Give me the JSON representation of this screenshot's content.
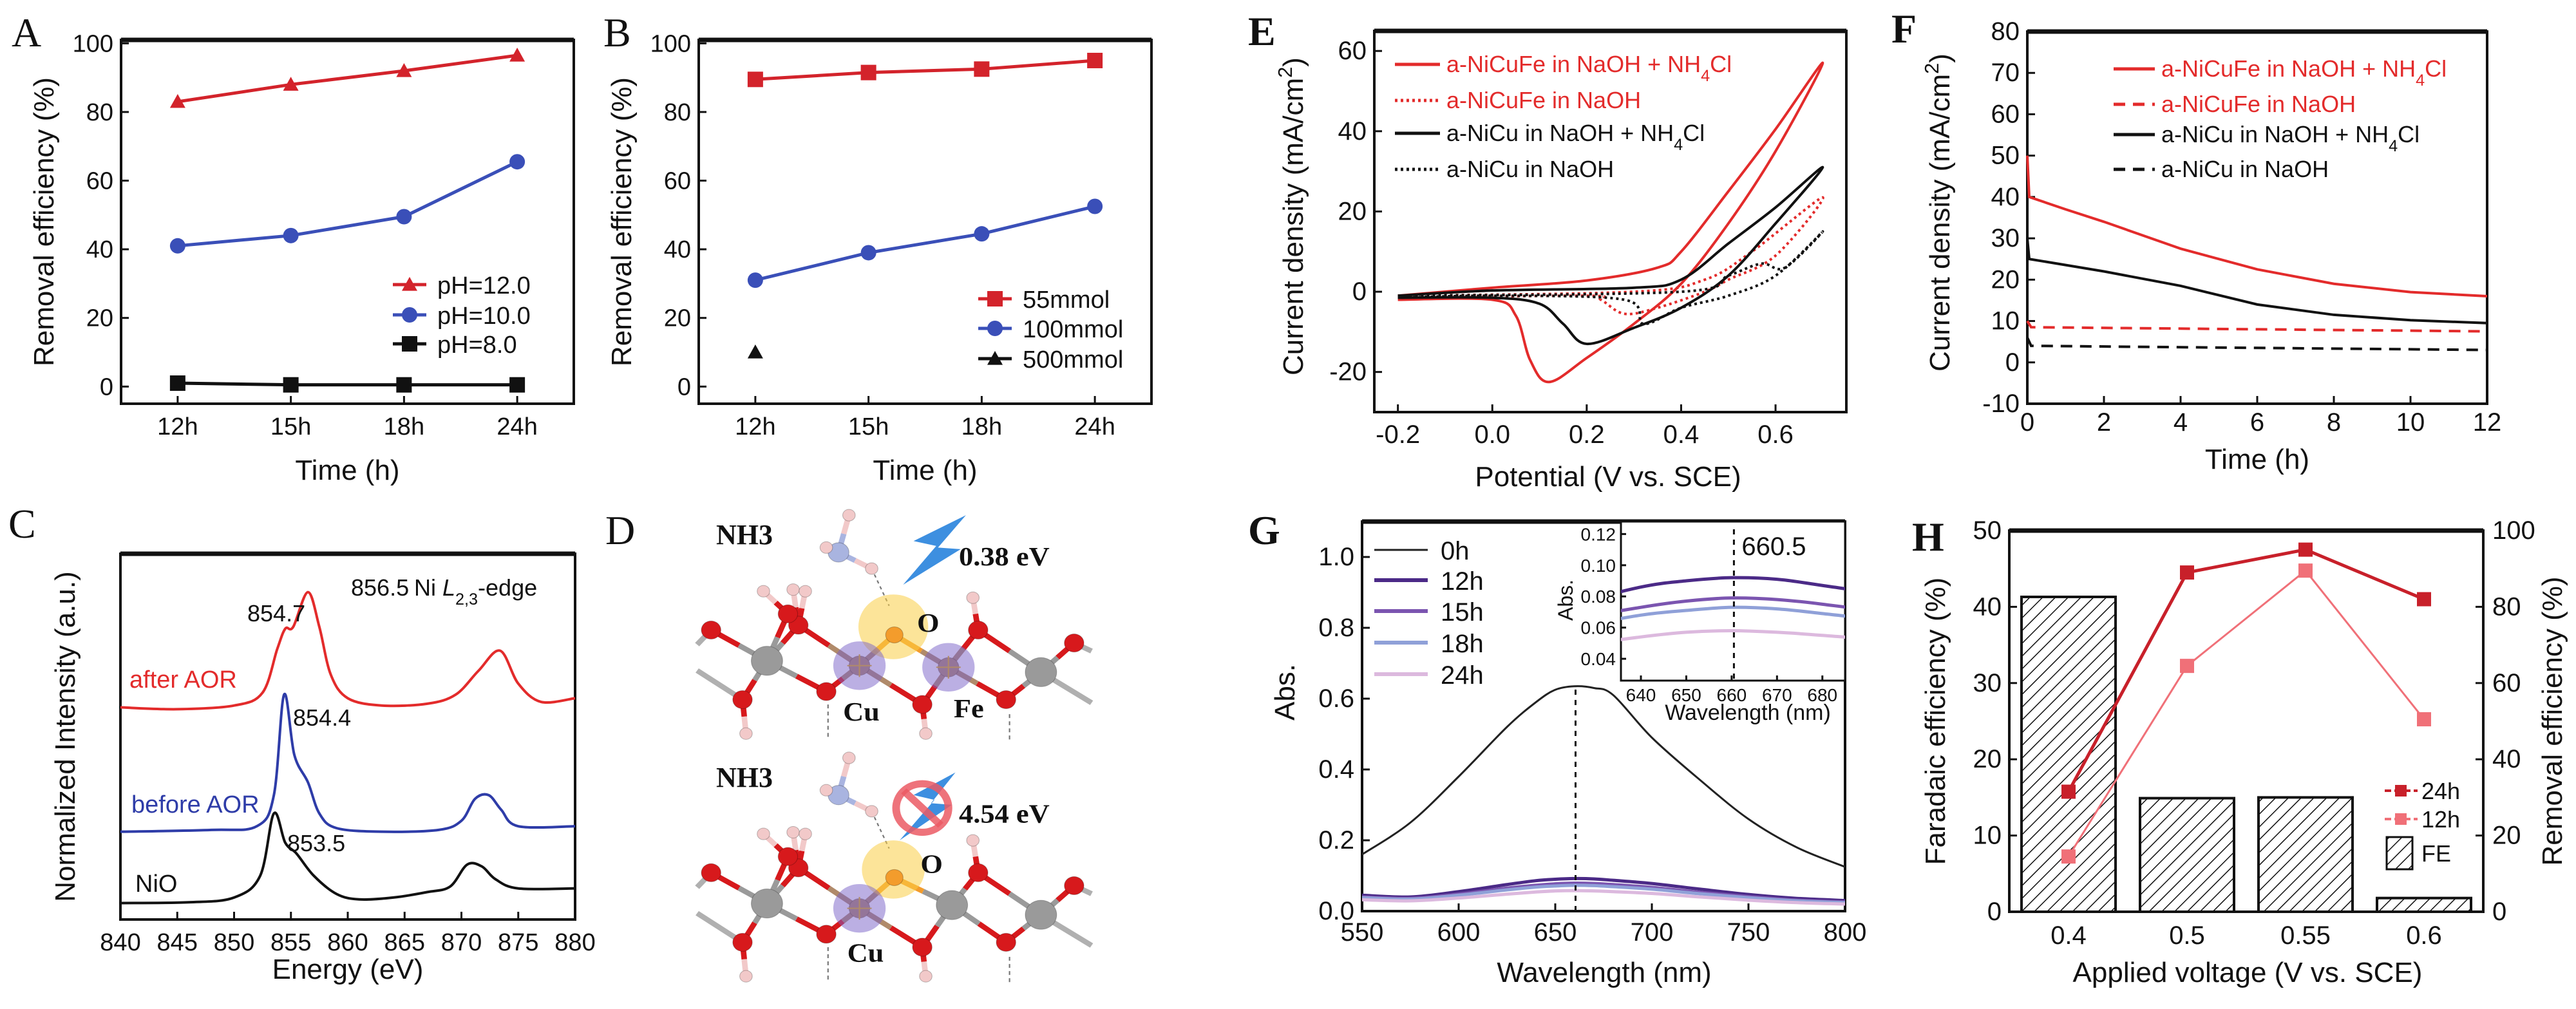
{
  "panel_letters": [
    "A",
    "B",
    "C",
    "D",
    "E",
    "F",
    "G",
    "H"
  ],
  "colors": {
    "red": "#e32b2b",
    "dark_red": "#c8202a",
    "pink": "#f07078",
    "blue": "#3a4fb8",
    "black": "#111111"
  },
  "panel_d": {
    "molecule_top": "NH3",
    "molecule_bottom": "NH3",
    "energy_top": "0.38 eV",
    "energy_bottom": "4.54 eV",
    "oxygen_top": "O",
    "oxygen_bottom": "O",
    "copper_top": "Cu",
    "iron_top": "Fe",
    "copper_bottom": "Cu",
    "icons": [
      "lightning-icon",
      "prohibited-icon"
    ]
  },
  "chart_data": [
    {
      "panel": "A",
      "type": "line",
      "xlabel": "Time (h)",
      "ylabel": "Removal efficiency (%)",
      "categories": [
        "12h",
        "15h",
        "18h",
        "24h"
      ],
      "y_ticks": [
        "0",
        "20",
        "40",
        "60",
        "80",
        "100"
      ],
      "ylim": [
        -5,
        101
      ],
      "grid": false,
      "legend": "bottom-right",
      "series": [
        {
          "name": "pH=12.0",
          "color": "#d3232b",
          "marker": "triangle",
          "values": [
            83,
            88,
            92,
            96.5
          ]
        },
        {
          "name": "pH=10.0",
          "color": "#3a4fb8",
          "marker": "circle",
          "values": [
            41,
            44,
            49.5,
            65.5
          ]
        },
        {
          "name": "pH=8.0",
          "color": "#111111",
          "marker": "square",
          "values": [
            1,
            0.5,
            0.5,
            0.5
          ]
        }
      ]
    },
    {
      "panel": "B",
      "type": "line",
      "xlabel": "Time (h)",
      "ylabel": "Removal efficiency (%)",
      "categories": [
        "12h",
        "15h",
        "18h",
        "24h"
      ],
      "y_ticks": [
        "0",
        "20",
        "40",
        "60",
        "80",
        "100"
      ],
      "ylim": [
        -5,
        101
      ],
      "grid": false,
      "legend": "bottom-right",
      "series": [
        {
          "name": "55mmol",
          "color": "#d3232b",
          "marker": "square",
          "values": [
            89.5,
            91.5,
            92.5,
            95
          ]
        },
        {
          "name": "100mmol",
          "color": "#3a4fb8",
          "marker": "circle",
          "values": [
            31,
            39,
            44.5,
            52.5
          ]
        },
        {
          "name": "500mmol",
          "color": "#111111",
          "marker": "triangle",
          "values": [
            10,
            null,
            null,
            null
          ]
        }
      ]
    },
    {
      "panel": "C",
      "type": "line",
      "xlabel": "Energy (eV)",
      "ylabel": "Normalized Intensity (a.u.)",
      "x_ticks": [
        "840",
        "845",
        "850",
        "855",
        "860",
        "865",
        "870",
        "875",
        "880"
      ],
      "xlim": [
        840,
        880
      ],
      "ylim": [
        0,
        1
      ],
      "grid": false,
      "annotations": [
        "856.5",
        "854.7",
        "Ni L2,3-edge",
        "854.4",
        "853.5"
      ],
      "series": [
        {
          "label": "after AOR",
          "color": "#e32b2b",
          "points": [
            [
              840,
              0.58
            ],
            [
              845,
              0.575
            ],
            [
              850,
              0.585
            ],
            [
              852.5,
              0.62
            ],
            [
              853.8,
              0.74
            ],
            [
              854.5,
              0.795
            ],
            [
              855.2,
              0.8
            ],
            [
              856.5,
              0.895
            ],
            [
              857.5,
              0.8
            ],
            [
              858.5,
              0.67
            ],
            [
              860,
              0.605
            ],
            [
              863,
              0.585
            ],
            [
              867,
              0.59
            ],
            [
              869.5,
              0.615
            ],
            [
              871.5,
              0.68
            ],
            [
              873.4,
              0.735
            ],
            [
              875,
              0.645
            ],
            [
              877,
              0.595
            ],
            [
              880,
              0.605
            ]
          ]
        },
        {
          "label": "before AOR",
          "color": "#2e3ca8",
          "points": [
            [
              840,
              0.24
            ],
            [
              848,
              0.245
            ],
            [
              852,
              0.255
            ],
            [
              853.5,
              0.34
            ],
            [
              854.4,
              0.615
            ],
            [
              855.3,
              0.45
            ],
            [
              856.5,
              0.375
            ],
            [
              857.5,
              0.29
            ],
            [
              859,
              0.25
            ],
            [
              863,
              0.24
            ],
            [
              868,
              0.245
            ],
            [
              870,
              0.27
            ],
            [
              871.2,
              0.33
            ],
            [
              872.4,
              0.34
            ],
            [
              873.5,
              0.3
            ],
            [
              875,
              0.255
            ],
            [
              880,
              0.255
            ]
          ]
        },
        {
          "label": "NiO",
          "color": "#111111",
          "points": [
            [
              840,
              0.045
            ],
            [
              846,
              0.047
            ],
            [
              850,
              0.06
            ],
            [
              852.3,
              0.12
            ],
            [
              853.5,
              0.29
            ],
            [
              854.5,
              0.21
            ],
            [
              855.5,
              0.18
            ],
            [
              857,
              0.12
            ],
            [
              859,
              0.07
            ],
            [
              861,
              0.055
            ],
            [
              864,
              0.06
            ],
            [
              867,
              0.075
            ],
            [
              869,
              0.09
            ],
            [
              870.5,
              0.15
            ],
            [
              871.8,
              0.145
            ],
            [
              873,
              0.11
            ],
            [
              875,
              0.085
            ],
            [
              880,
              0.085
            ]
          ]
        }
      ]
    },
    {
      "panel": "E",
      "type": "line",
      "xlabel": "Potential (V vs. SCE)",
      "ylabel": "Current density (mA/cm2)",
      "x_ticks": [
        "-0.2",
        "0.0",
        "0.2",
        "0.4",
        "0.6"
      ],
      "y_ticks": [
        "-20",
        "0",
        "20",
        "40",
        "60"
      ],
      "xlim": [
        -0.25,
        0.75
      ],
      "ylim": [
        -30,
        65
      ],
      "grid": false,
      "legend": "top-left",
      "series": [
        {
          "name": "a-NiCuFe in NaOH + NH4Cl",
          "color": "#e32b2b",
          "style": "solid",
          "points": [
            [
              -0.2,
              -1
            ],
            [
              0,
              1
            ],
            [
              0.2,
              2.8
            ],
            [
              0.35,
              6
            ],
            [
              0.4,
              10
            ],
            [
              0.5,
              25
            ],
            [
              0.6,
              40.5
            ],
            [
              0.7,
              57
            ],
            [
              0.6,
              35
            ],
            [
              0.5,
              17
            ],
            [
              0.4,
              2
            ],
            [
              0.3,
              -8
            ],
            [
              0.2,
              -16.5
            ],
            [
              0.12,
              -22.5
            ],
            [
              0.08,
              -17
            ],
            [
              0.05,
              -6
            ],
            [
              0,
              -2
            ],
            [
              -0.2,
              -2
            ]
          ]
        },
        {
          "name": "a-NiCuFe in NaOH",
          "color": "#e32b2b",
          "style": "dotted",
          "points": [
            [
              -0.2,
              -1
            ],
            [
              0.3,
              0
            ],
            [
              0.45,
              3
            ],
            [
              0.55,
              10
            ],
            [
              0.7,
              23.5
            ],
            [
              0.6,
              9
            ],
            [
              0.5,
              3
            ],
            [
              0.45,
              0
            ],
            [
              0.35,
              -4
            ],
            [
              0.28,
              -5.5
            ],
            [
              0.23,
              -2
            ],
            [
              0.2,
              -1
            ],
            [
              -0.2,
              -1.5
            ]
          ]
        },
        {
          "name": "a-NiCu in NaOH + NH4Cl",
          "color": "#111111",
          "style": "solid",
          "points": [
            [
              -0.2,
              -1
            ],
            [
              0,
              0.3
            ],
            [
              0.3,
              1
            ],
            [
              0.4,
              3
            ],
            [
              0.5,
              12
            ],
            [
              0.6,
              21
            ],
            [
              0.7,
              31
            ],
            [
              0.6,
              17
            ],
            [
              0.5,
              4
            ],
            [
              0.4,
              -4
            ],
            [
              0.3,
              -9
            ],
            [
              0.2,
              -13
            ],
            [
              0.15,
              -8
            ],
            [
              0.1,
              -3
            ],
            [
              0,
              -1.5
            ],
            [
              -0.2,
              -1.5
            ]
          ]
        },
        {
          "name": "a-NiCu in NaOH",
          "color": "#111111",
          "style": "dotted",
          "points": [
            [
              -0.2,
              -1
            ],
            [
              0.4,
              0
            ],
            [
              0.5,
              4
            ],
            [
              0.57,
              7
            ],
            [
              0.62,
              6
            ],
            [
              0.7,
              15
            ],
            [
              0.6,
              4
            ],
            [
              0.5,
              -1
            ],
            [
              0.4,
              -4
            ],
            [
              0.32,
              -8
            ],
            [
              0.28,
              -2
            ],
            [
              0,
              -1
            ],
            [
              -0.2,
              -1.5
            ]
          ]
        }
      ]
    },
    {
      "panel": "F",
      "type": "line",
      "xlabel": "Time (h)",
      "ylabel": "Current density (mA/cm2)",
      "x_ticks": [
        "0",
        "2",
        "4",
        "6",
        "8",
        "10",
        "12"
      ],
      "y_ticks": [
        "-10",
        "0",
        "10",
        "20",
        "30",
        "40",
        "50",
        "60",
        "70",
        "80"
      ],
      "xlim": [
        0,
        12
      ],
      "ylim": [
        -10,
        80
      ],
      "grid": false,
      "legend": "top-right",
      "series": [
        {
          "name": "a-NiCuFe in NaOH + NH4Cl",
          "color": "#e32b2b",
          "style": "solid",
          "points": [
            [
              0,
              50
            ],
            [
              0.05,
              40
            ],
            [
              1,
              37
            ],
            [
              2,
              34
            ],
            [
              4,
              27.5
            ],
            [
              6,
              22.5
            ],
            [
              8,
              19
            ],
            [
              10,
              17
            ],
            [
              12,
              16
            ]
          ]
        },
        {
          "name": "a-NiCuFe in NaOH",
          "color": "#e32b2b",
          "style": "dashed",
          "points": [
            [
              0,
              10
            ],
            [
              0.1,
              8.5
            ],
            [
              6,
              8
            ],
            [
              12,
              7.5
            ]
          ]
        },
        {
          "name": "a-NiCu in NaOH + NH4Cl",
          "color": "#111111",
          "style": "solid",
          "points": [
            [
              0,
              30
            ],
            [
              0.05,
              25
            ],
            [
              2,
              22
            ],
            [
              4,
              18.5
            ],
            [
              6,
              14
            ],
            [
              8,
              11.5
            ],
            [
              10,
              10.2
            ],
            [
              12,
              9.5
            ]
          ]
        },
        {
          "name": "a-NiCu in NaOH",
          "color": "#111111",
          "style": "dashed",
          "points": [
            [
              0,
              6
            ],
            [
              0.1,
              4
            ],
            [
              6,
              3.5
            ],
            [
              12,
              3
            ]
          ]
        }
      ]
    },
    {
      "panel": "G",
      "type": "line",
      "xlabel": "Wavelength (nm)",
      "ylabel": "Abs.",
      "x_ticks": [
        "550",
        "600",
        "650",
        "700",
        "750",
        "800"
      ],
      "y_ticks": [
        "0.0",
        "0.2",
        "0.4",
        "0.6",
        "0.8",
        "1.0"
      ],
      "xlim": [
        550,
        800
      ],
      "ylim": [
        0,
        1.1
      ],
      "grid": false,
      "legend": "top-left",
      "peak_marker": 660.5,
      "wavelengths": [
        550,
        575,
        600,
        625,
        640,
        650,
        660,
        670,
        680,
        700,
        725,
        750,
        775,
        800
      ],
      "series": [
        {
          "name": "0h",
          "color": "#222222",
          "values": [
            0.16,
            0.25,
            0.38,
            0.52,
            0.59,
            0.625,
            0.635,
            0.63,
            0.61,
            0.49,
            0.37,
            0.26,
            0.18,
            0.125
          ]
        },
        {
          "name": "12h",
          "color": "#4b2a87",
          "values": [
            0.045,
            0.04,
            0.055,
            0.075,
            0.086,
            0.09,
            0.092,
            0.091,
            0.087,
            0.078,
            0.062,
            0.047,
            0.036,
            0.03
          ]
        },
        {
          "name": "15h",
          "color": "#7b55b0",
          "values": [
            0.04,
            0.036,
            0.048,
            0.065,
            0.073,
            0.077,
            0.079,
            0.078,
            0.075,
            0.067,
            0.053,
            0.041,
            0.031,
            0.026
          ]
        },
        {
          "name": "18h",
          "color": "#8fa0d8",
          "values": [
            0.038,
            0.034,
            0.045,
            0.06,
            0.068,
            0.071,
            0.073,
            0.072,
            0.069,
            0.062,
            0.049,
            0.038,
            0.029,
            0.024
          ]
        },
        {
          "name": "24h",
          "color": "#dcb9de",
          "values": [
            0.032,
            0.029,
            0.037,
            0.048,
            0.054,
            0.057,
            0.058,
            0.057,
            0.055,
            0.05,
            0.04,
            0.031,
            0.024,
            0.02
          ]
        }
      ],
      "inset": {
        "xlabel": "Wavelength (nm)",
        "ylabel": "Abs.",
        "x_ticks": [
          "640",
          "650",
          "660",
          "670",
          "680"
        ],
        "y_ticks": [
          "0.04",
          "0.06",
          "0.08",
          "0.10",
          "0.12"
        ],
        "xlim": [
          635.6,
          685
        ],
        "ylim": [
          0.026,
          0.128
        ],
        "peak_label": "660.5"
      }
    },
    {
      "panel": "H",
      "type": "bar",
      "xlabel": "Applied voltage (V vs. SCE)",
      "ylabel": "Faradaic efficiency (%)",
      "ylabel_right": "Removal efficiency (%)",
      "categories": [
        "0.4",
        "0.5",
        "0.55",
        "0.6"
      ],
      "y_ticks": [
        "0",
        "10",
        "20",
        "30",
        "40",
        "50"
      ],
      "ylim": [
        0,
        50
      ],
      "y_ticks_right": [
        "0",
        "20",
        "40",
        "60",
        "80",
        "100"
      ],
      "ylim_right": [
        0,
        100
      ],
      "grid": false,
      "legend": "bottom-right",
      "bars": {
        "name": "FE",
        "values": [
          41.3,
          14.9,
          15.0,
          1.8
        ],
        "fill": "hatched"
      },
      "series": [
        {
          "name": "24h",
          "color": "#c8202a",
          "marker": "square",
          "axis": "right",
          "values": [
            31.5,
            89,
            95,
            82
          ]
        },
        {
          "name": "12h",
          "color": "#f07078",
          "marker": "square",
          "axis": "right",
          "values": [
            14.5,
            64.5,
            89.5,
            50.5
          ]
        }
      ]
    }
  ]
}
